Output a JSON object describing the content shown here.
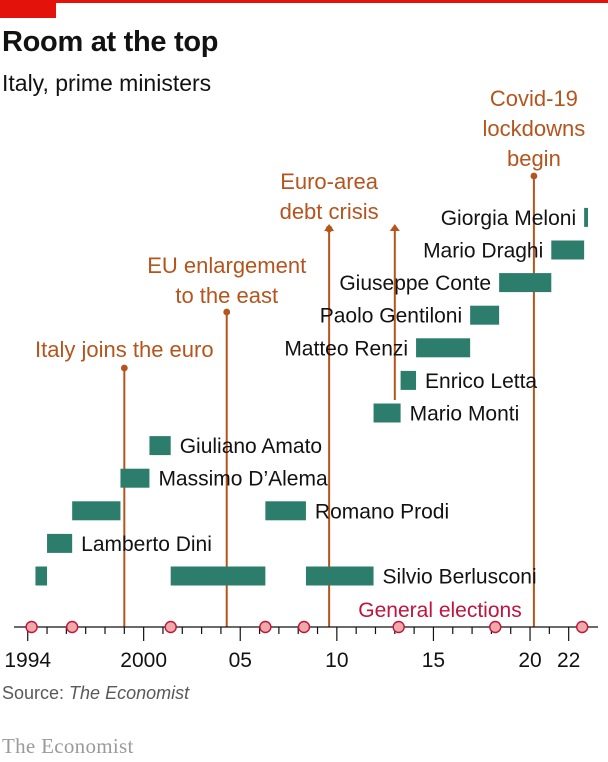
{
  "title": "Room at the top",
  "subtitle": "Italy, prime ministers",
  "source_label": "Source: ",
  "source_name": "The Economist",
  "brand": "The Economist",
  "colors": {
    "bar": "#2c7d6b",
    "event": "#b5541d",
    "election": "#c0143c",
    "election_fill": "#f0a9a9",
    "axis": "#121212"
  },
  "chart_data": {
    "type": "gantt",
    "title": "Room at the top",
    "subtitle": "Italy, prime ministers",
    "xlim": [
      1993.6,
      2023.0
    ],
    "x_tick_labels": [
      {
        "value": 1994,
        "label": "1994"
      },
      {
        "value": 2000,
        "label": "2000"
      },
      {
        "value": 2005,
        "label": "05"
      },
      {
        "value": 2010,
        "label": "10"
      },
      {
        "value": 2015,
        "label": "15"
      },
      {
        "value": 2020,
        "label": "20"
      },
      {
        "value": 2022,
        "label": "22"
      }
    ],
    "grid": false,
    "prime_ministers": [
      {
        "name": "Silvio Berlusconi",
        "row": 0,
        "terms": [
          [
            1994.4,
            1995.0
          ],
          [
            2001.4,
            2006.3
          ],
          [
            2008.4,
            2011.9
          ]
        ]
      },
      {
        "name": "Lamberto Dini",
        "row": 1,
        "terms": [
          [
            1995.0,
            1996.3
          ]
        ]
      },
      {
        "name": "Romano Prodi",
        "row": 2,
        "terms": [
          [
            1996.3,
            1998.8
          ],
          [
            2006.3,
            2008.4
          ]
        ]
      },
      {
        "name": "Massimo D’Alema",
        "row": 3,
        "terms": [
          [
            1998.8,
            2000.3
          ]
        ]
      },
      {
        "name": "Giuliano Amato",
        "row": 4,
        "terms": [
          [
            2000.3,
            2001.4
          ]
        ]
      },
      {
        "name": "Mario Monti",
        "row": 5,
        "terms": [
          [
            2011.9,
            2013.3
          ]
        ]
      },
      {
        "name": "Enrico Letta",
        "row": 6,
        "terms": [
          [
            2013.3,
            2014.1
          ]
        ]
      },
      {
        "name": "Matteo Renzi",
        "row": 7,
        "terms": [
          [
            2014.1,
            2016.9
          ]
        ]
      },
      {
        "name": "Paolo Gentiloni",
        "row": 8,
        "terms": [
          [
            2016.9,
            2018.4
          ]
        ]
      },
      {
        "name": "Giuseppe Conte",
        "row": 9,
        "terms": [
          [
            2018.4,
            2021.1
          ]
        ]
      },
      {
        "name": "Mario Draghi",
        "row": 10,
        "terms": [
          [
            2021.1,
            2022.8
          ]
        ]
      },
      {
        "name": "Giorgia Meloni",
        "row": 11,
        "terms": [
          [
            2022.8,
            2023.0
          ]
        ]
      }
    ],
    "events": [
      {
        "year": 1999.0,
        "lines": [
          "Italy joins the euro"
        ]
      },
      {
        "year": 2004.3,
        "lines": [
          "EU enlargement",
          "to the east"
        ]
      },
      {
        "year": 2009.6,
        "lines": [
          "Euro-area",
          "debt crisis"
        ]
      },
      {
        "year": 2020.2,
        "lines": [
          "Covid-19",
          "lockdowns",
          "begin"
        ]
      }
    ],
    "election_label": "General elections",
    "elections": [
      1994.2,
      1996.3,
      2001.4,
      2006.3,
      2008.3,
      2013.2,
      2018.2,
      2022.7
    ]
  }
}
